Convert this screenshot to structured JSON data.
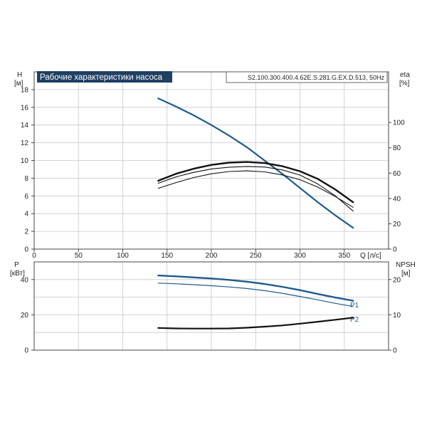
{
  "title": "Рабочие характеристики насоса",
  "model": "S2.100.300.400.4.62E.S.281.G.EX.D.513, 50Hz",
  "colors": {
    "blue": "#1f5b8e",
    "black": "#111111",
    "title_bg": "#1f3f63"
  },
  "top": {
    "left_axis_label": "H",
    "left_axis_unit": "[м]",
    "right_axis_label": "eta",
    "right_axis_unit": "[%]",
    "x_axis_label": "Q [л/с]",
    "y_ticks": [
      "0",
      "2",
      "4",
      "6",
      "8",
      "10",
      "12",
      "14",
      "16",
      "18"
    ],
    "eta_ticks": [
      "0",
      "20",
      "40",
      "60",
      "80",
      "100"
    ],
    "x_ticks": [
      "0",
      "50",
      "100",
      "150",
      "200",
      "250",
      "300",
      "350"
    ]
  },
  "bottom": {
    "left_axis_label": "P",
    "left_axis_unit": "[кВт]",
    "right_axis_label": "NPSH",
    "right_axis_unit": "[м]",
    "y_ticks": [
      "0",
      "20",
      "40"
    ],
    "npsh_ticks": [
      "0",
      "10",
      "20"
    ],
    "p1_label": "P1",
    "p2_label": "P2"
  },
  "chart_data": [
    {
      "type": "line",
      "panel": "top",
      "xlim": [
        0,
        400
      ],
      "ylim": [
        0,
        20
      ],
      "eta_lim": [
        0,
        140
      ],
      "grid": true,
      "series": [
        {
          "axis": "H",
          "color": "#1f5b8e",
          "x": [
            140,
            160,
            180,
            200,
            220,
            240,
            260,
            280,
            300,
            320,
            340,
            360
          ],
          "y": [
            17,
            16.1,
            15.1,
            14.0,
            12.8,
            11.5,
            10.0,
            8.5,
            6.9,
            5.3,
            3.8,
            2.4
          ]
        },
        {
          "axis": "eta",
          "color": "#111111",
          "x": [
            140,
            160,
            180,
            200,
            220,
            240,
            260,
            280,
            300,
            320,
            340,
            360
          ],
          "y": [
            54,
            59.5,
            63.5,
            66.5,
            68.3,
            68.8,
            68.0,
            65.5,
            61.5,
            55.5,
            47,
            37
          ]
        },
        {
          "axis": "eta",
          "color": "#111111",
          "x": [
            140,
            160,
            180,
            200,
            220,
            240,
            260,
            280,
            300,
            320,
            340,
            360
          ],
          "y": [
            52,
            57,
            60.6,
            63.3,
            64.7,
            65.3,
            64.8,
            62.6,
            58.5,
            51.5,
            42,
            30
          ]
        },
        {
          "axis": "eta",
          "color": "#111111",
          "x": [
            140,
            160,
            180,
            200,
            220,
            240,
            260,
            280,
            300,
            320,
            340,
            360
          ],
          "y": [
            48,
            52.5,
            56.5,
            59.5,
            61.3,
            61.8,
            61.0,
            58.6,
            54.8,
            49,
            41.5,
            33
          ]
        }
      ]
    },
    {
      "type": "line",
      "panel": "bottom",
      "xlim": [
        0,
        400
      ],
      "ylim": [
        0,
        50
      ],
      "npsh_lim": [
        0,
        25
      ],
      "grid": true,
      "series": [
        {
          "name": "P1",
          "axis": "P",
          "color": "#1f5b8e",
          "x": [
            140,
            160,
            180,
            200,
            220,
            240,
            260,
            280,
            300,
            320,
            340,
            360
          ],
          "y": [
            42.3,
            41.8,
            41.2,
            40.6,
            39.8,
            38.8,
            37.5,
            35.9,
            34.0,
            31.8,
            29.8,
            28.0
          ]
        },
        {
          "name": "P2",
          "axis": "P",
          "color": "#1f5b8e",
          "x": [
            140,
            160,
            180,
            200,
            220,
            240,
            260,
            280,
            300,
            320,
            340,
            360
          ],
          "y": [
            38.0,
            37.6,
            37.1,
            36.5,
            35.8,
            34.9,
            33.7,
            32.2,
            30.4,
            28.5,
            26.5,
            24.7
          ]
        },
        {
          "axis": "NPSH",
          "color": "#111111",
          "x": [
            140,
            160,
            180,
            200,
            220,
            240,
            260,
            280,
            300,
            320,
            340,
            360
          ],
          "y": [
            6.3,
            6.15,
            6.1,
            6.1,
            6.15,
            6.35,
            6.65,
            7.0,
            7.5,
            8.05,
            8.6,
            9.2
          ]
        }
      ]
    }
  ]
}
